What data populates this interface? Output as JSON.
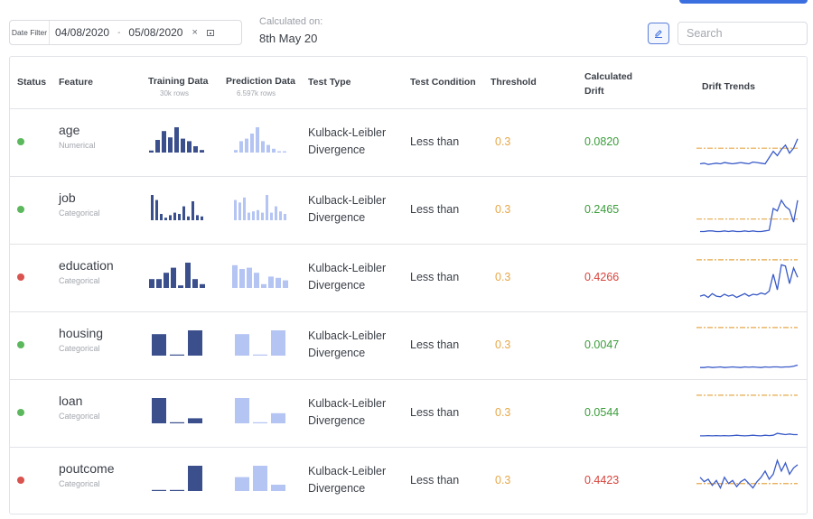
{
  "toolbar": {
    "date_filter_label": "Date Filter",
    "date_from": "04/08/2020",
    "date_sep": "-",
    "date_to": "05/08/2020",
    "clear_glyph": "×",
    "calculated_label": "Calculated on:",
    "calculated_value": "8th May 20",
    "search_placeholder": "Search",
    "edit_icon": "edit-icon"
  },
  "colors": {
    "pass": "#5cb85c",
    "fail": "#d9534f",
    "drift_ok": "#3c9d3c",
    "drift_bad": "#d8443c",
    "threshold": "#e6a84a",
    "training_bar": "#3a4f8c",
    "prediction_bar": "#b4c4f3",
    "trend_line": "#3a5bc8"
  },
  "headers": {
    "status": "Status",
    "feature": "Feature",
    "training": "Training Data",
    "training_sub": "30k rows",
    "prediction": "Prediction Data",
    "prediction_sub": "6.597k rows",
    "test_type": "Test Type",
    "test_condition": "Test Condition",
    "threshold": "Threshold",
    "calculated_drift": "Calculated Drift",
    "drift_trends": "Drift Trends"
  },
  "rows": [
    {
      "status": "pass",
      "feature": "age",
      "type": "Numerical",
      "test_type": "Kulback-Leibler Divergence",
      "condition": "Less than",
      "threshold": "0.3",
      "drift": "0.0820",
      "train_hist": [
        0.08,
        0.5,
        0.85,
        0.6,
        1.0,
        0.55,
        0.45,
        0.25,
        0.1
      ],
      "pred_hist": [
        0.1,
        0.45,
        0.55,
        0.75,
        1.0,
        0.45,
        0.3,
        0.15,
        0.05,
        0.05
      ],
      "trend": [
        0.05,
        0.06,
        0.04,
        0.05,
        0.06,
        0.05,
        0.07,
        0.06,
        0.05,
        0.06,
        0.07,
        0.06,
        0.05,
        0.08,
        0.07,
        0.06,
        0.05,
        0.15,
        0.25,
        0.18,
        0.28,
        0.35,
        0.22,
        0.3,
        0.45
      ],
      "trend_threshold": 0.3
    },
    {
      "status": "pass",
      "feature": "job",
      "type": "Categorical",
      "test_type": "Kulback-Leibler Divergence",
      "condition": "Less than",
      "threshold": "0.3",
      "drift": "0.2465",
      "train_hist": [
        1.0,
        0.8,
        0.25,
        0.1,
        0.2,
        0.3,
        0.25,
        0.55,
        0.15,
        0.75,
        0.2,
        0.15
      ],
      "pred_hist": [
        0.8,
        0.7,
        0.9,
        0.3,
        0.35,
        0.4,
        0.3,
        1.0,
        0.3,
        0.55,
        0.35,
        0.25
      ],
      "trend": [
        0.05,
        0.05,
        0.06,
        0.06,
        0.05,
        0.05,
        0.06,
        0.05,
        0.06,
        0.05,
        0.05,
        0.06,
        0.05,
        0.06,
        0.05,
        0.05,
        0.06,
        0.07,
        0.42,
        0.38,
        0.55,
        0.45,
        0.4,
        0.2,
        0.55
      ],
      "trend_threshold": 0.25
    },
    {
      "status": "fail",
      "feature": "education",
      "type": "Categorical",
      "test_type": "Kulback-Leibler Divergence",
      "condition": "Less than",
      "threshold": "0.3",
      "drift": "0.4266",
      "train_hist": [
        0.35,
        0.35,
        0.6,
        0.8,
        0.1,
        1.0,
        0.35,
        0.15
      ],
      "pred_hist": [
        0.9,
        0.75,
        0.8,
        0.6,
        0.15,
        0.45,
        0.4,
        0.3
      ],
      "trend": [
        0.1,
        0.12,
        0.08,
        0.14,
        0.1,
        0.09,
        0.13,
        0.1,
        0.12,
        0.08,
        0.11,
        0.14,
        0.1,
        0.13,
        0.12,
        0.15,
        0.13,
        0.18,
        0.45,
        0.2,
        0.6,
        0.58,
        0.3,
        0.55,
        0.4
      ],
      "trend_threshold": 0.68
    },
    {
      "status": "pass",
      "feature": "housing",
      "type": "Categorical",
      "test_type": "Kulback-Leibler Divergence",
      "condition": "Less than",
      "threshold": "0.3",
      "drift": "0.0047",
      "train_hist": [
        0.85,
        0.04,
        1.0
      ],
      "pred_hist": [
        0.85,
        0.04,
        1.0
      ],
      "trend": [
        0.04,
        0.04,
        0.05,
        0.04,
        0.045,
        0.05,
        0.04,
        0.045,
        0.05,
        0.045,
        0.04,
        0.05,
        0.045,
        0.05,
        0.045,
        0.04,
        0.05,
        0.045,
        0.05,
        0.05,
        0.045,
        0.05,
        0.05,
        0.06,
        0.08
      ],
      "trend_threshold": 0.68
    },
    {
      "status": "pass",
      "feature": "loan",
      "type": "Categorical",
      "test_type": "Kulback-Leibler Divergence",
      "condition": "Less than",
      "threshold": "0.3",
      "drift": "0.0544",
      "train_hist": [
        1.0,
        0.04,
        0.2
      ],
      "pred_hist": [
        1.0,
        0.04,
        0.4
      ],
      "trend": [
        0.03,
        0.03,
        0.035,
        0.03,
        0.035,
        0.03,
        0.035,
        0.03,
        0.035,
        0.04,
        0.035,
        0.03,
        0.035,
        0.04,
        0.035,
        0.03,
        0.04,
        0.035,
        0.04,
        0.07,
        0.06,
        0.05,
        0.06,
        0.05,
        0.05
      ],
      "trend_threshold": 0.68
    },
    {
      "status": "fail",
      "feature": "poutcome",
      "type": "Categorical",
      "test_type": "Kulback-Leibler Divergence",
      "condition": "Less than",
      "threshold": "0.3",
      "drift": "0.4423",
      "train_hist": [
        0.04,
        0.04,
        1.0
      ],
      "pred_hist": [
        0.55,
        1.0,
        0.25
      ],
      "trend": [
        0.45,
        0.38,
        0.42,
        0.32,
        0.4,
        0.28,
        0.45,
        0.35,
        0.4,
        0.3,
        0.38,
        0.42,
        0.35,
        0.28,
        0.38,
        0.45,
        0.55,
        0.42,
        0.5,
        0.72,
        0.55,
        0.68,
        0.5,
        0.6,
        0.65
      ],
      "trend_threshold": 0.35
    }
  ]
}
